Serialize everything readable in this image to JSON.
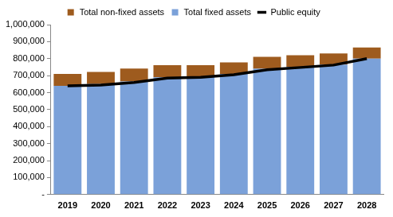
{
  "chart_data": {
    "type": "bar",
    "categories": [
      "2019",
      "2020",
      "2021",
      "2022",
      "2023",
      "2024",
      "2025",
      "2026",
      "2027",
      "2028"
    ],
    "stacked": true,
    "legend": "top",
    "grid": false,
    "series": [
      {
        "name": "Total non-fixed assets",
        "type": "bar",
        "color": "#9e5b1e",
        "values": [
          70000,
          72000,
          77000,
          72000,
          67000,
          68000,
          70000,
          68000,
          65000,
          65000
        ]
      },
      {
        "name": "Total fixed assets",
        "type": "bar",
        "color": "#7ba1d9",
        "values": [
          640000,
          650000,
          665000,
          690000,
          695000,
          710000,
          740000,
          752000,
          765000,
          800000
        ]
      },
      {
        "name": "Public equity",
        "type": "line",
        "color": "#000000",
        "values": [
          640000,
          645000,
          660000,
          685000,
          690000,
          705000,
          735000,
          748000,
          762000,
          800000
        ]
      }
    ],
    "ylim": [
      0,
      1000000
    ],
    "yticks": [
      {
        "value": 0,
        "label": "-"
      },
      {
        "value": 100000,
        "label": "100,000"
      },
      {
        "value": 200000,
        "label": "200,000"
      },
      {
        "value": 300000,
        "label": "300,000"
      },
      {
        "value": 400000,
        "label": "400,000"
      },
      {
        "value": 500000,
        "label": "500,000"
      },
      {
        "value": 600000,
        "label": "600,000"
      },
      {
        "value": 700000,
        "label": "700,000"
      },
      {
        "value": 800000,
        "label": "800,000"
      },
      {
        "value": 900000,
        "label": "900,000"
      },
      {
        "value": 1000000,
        "label": "1,000,000"
      }
    ]
  }
}
